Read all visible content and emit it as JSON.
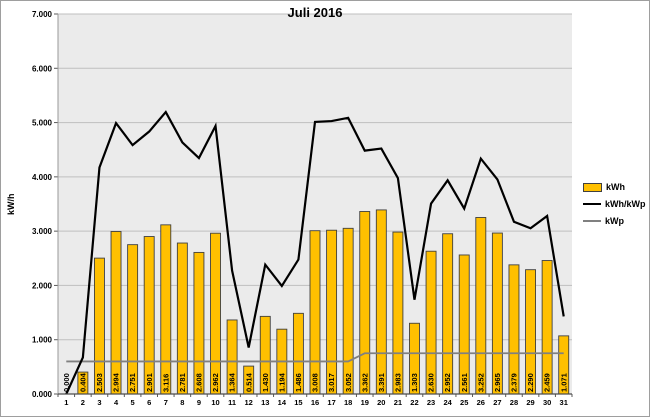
{
  "chart_data": {
    "type": "bar",
    "title": "Juli 2016",
    "xlabel": "",
    "ylabel": "kW/h",
    "ylim": [
      0,
      7
    ],
    "y_tick_labels": [
      "0.000",
      "1.000",
      "2.000",
      "3.000",
      "4.000",
      "5.000",
      "6.000",
      "7.000"
    ],
    "grid": "horizontal",
    "legend_position": "right",
    "plot_background": "#EBEBEB",
    "gridline_color": "#BFBFBF",
    "categories": [
      1,
      2,
      3,
      4,
      5,
      6,
      7,
      8,
      9,
      10,
      11,
      12,
      13,
      14,
      15,
      16,
      17,
      18,
      19,
      20,
      21,
      22,
      23,
      24,
      25,
      26,
      27,
      28,
      29,
      30,
      31
    ],
    "series": [
      {
        "name": "kWh",
        "type": "bar",
        "color": "#FFC000",
        "border_color": "#404040",
        "values": [
          0.0,
          0.404,
          2.503,
          2.994,
          2.751,
          2.901,
          3.116,
          2.781,
          2.608,
          2.962,
          1.364,
          0.514,
          1.43,
          1.194,
          1.486,
          3.008,
          3.017,
          3.052,
          3.362,
          3.391,
          2.983,
          1.303,
          2.63,
          2.952,
          2.561,
          3.252,
          2.965,
          2.379,
          2.29,
          2.459,
          1.071
        ],
        "labels": [
          "0.000",
          "0.404",
          "2.503",
          "2.994",
          "2.751",
          "2.901",
          "3.116",
          "2.781",
          "2.608",
          "2.962",
          "1.364",
          "0.514",
          "1.430",
          "1.194",
          "1.486",
          "3.008",
          "3.017",
          "3.052",
          "3.362",
          "3.391",
          "2.983",
          "1.303",
          "2.630",
          "2.952",
          "2.561",
          "3.252",
          "2.965",
          "2.379",
          "2.290",
          "2.459",
          "1.071"
        ]
      },
      {
        "name": "kWh/kWp",
        "type": "line",
        "color": "#000000",
        "values": [
          0.0,
          0.673,
          4.172,
          4.99,
          4.585,
          4.835,
          5.193,
          4.635,
          4.347,
          4.937,
          2.273,
          0.857,
          2.383,
          1.99,
          2.477,
          5.013,
          5.028,
          5.087,
          4.483,
          4.521,
          3.977,
          1.737,
          3.507,
          3.936,
          3.415,
          4.336,
          3.953,
          3.172,
          3.053,
          3.279,
          1.428
        ]
      },
      {
        "name": "kWp",
        "type": "line",
        "color": "#808080",
        "values": [
          0.6,
          0.6,
          0.6,
          0.6,
          0.6,
          0.6,
          0.6,
          0.6,
          0.6,
          0.6,
          0.6,
          0.6,
          0.6,
          0.6,
          0.6,
          0.6,
          0.6,
          0.6,
          0.75,
          0.75,
          0.75,
          0.75,
          0.75,
          0.75,
          0.75,
          0.75,
          0.75,
          0.75,
          0.75,
          0.75,
          0.75
        ]
      }
    ]
  }
}
